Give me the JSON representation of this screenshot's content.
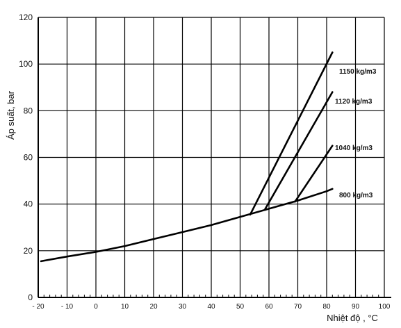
{
  "chart_data": {
    "type": "line",
    "xlabel": "Nhiệt độ , °C",
    "ylabel": "Áp suất, bar",
    "xlim": [
      -20,
      100
    ],
    "ylim": [
      0,
      120
    ],
    "x_ticks": [
      "- 20",
      "- 10",
      "0",
      "10",
      "20",
      "30",
      "40",
      "50",
      "60",
      "70",
      "80",
      "90",
      "100"
    ],
    "y_ticks": [
      "0",
      "20",
      "40",
      "60",
      "80",
      "100",
      "120"
    ],
    "grid": true,
    "series": [
      {
        "name": "800 kg/m3",
        "points": [
          [
            -19,
            15.5
          ],
          [
            -10,
            17.5
          ],
          [
            0,
            19.5
          ],
          [
            10,
            22
          ],
          [
            20,
            25
          ],
          [
            30,
            28
          ],
          [
            40,
            31
          ],
          [
            50,
            34.5
          ],
          [
            60,
            38
          ],
          [
            70,
            41.5
          ],
          [
            80,
            45.5
          ],
          [
            82,
            46.5
          ]
        ]
      },
      {
        "name": "1040 kg/m3",
        "points": [
          [
            69,
            41
          ],
          [
            82,
            65
          ]
        ]
      },
      {
        "name": "1120 kg/m3",
        "points": [
          [
            58.5,
            37.5
          ],
          [
            82,
            88
          ]
        ]
      },
      {
        "name": "1150 kg/m3",
        "points": [
          [
            53.5,
            35.5
          ],
          [
            82,
            105
          ]
        ]
      }
    ]
  }
}
